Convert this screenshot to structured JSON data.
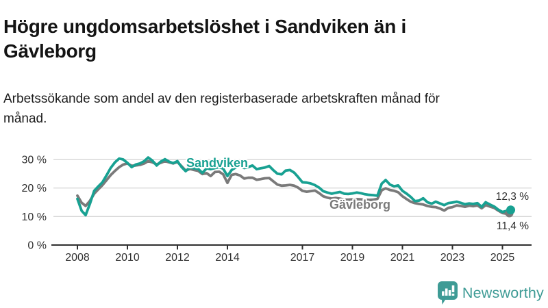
{
  "header": {
    "title": "Högre ungdomsarbetslöshet i Sandviken än i Gävleborg",
    "subtitle": "Arbetssökande som andel av den registerbaserade arbetskraften månad för månad."
  },
  "chart_data": {
    "type": "line",
    "title": "Högre ungdomsarbetslöshet i Sandviken än i Gävleborg",
    "xlabel": "",
    "ylabel": "Arbetssökande som andel av den registerbaserade arbetskraften (%)",
    "unit": "%",
    "ylim": [
      0,
      33
    ],
    "xlim": [
      2007.85,
      2025.6
    ],
    "grid": "horizontal",
    "legend_position": "inline-labels",
    "y_ticks": [
      {
        "value": 30,
        "label": "30 %"
      },
      {
        "value": 20,
        "label": "20 %"
      },
      {
        "value": 10,
        "label": "10 %"
      },
      {
        "value": 0,
        "label": "0 %"
      }
    ],
    "x_ticks": [
      {
        "value": 2008,
        "label": "2008"
      },
      {
        "value": 2010,
        "label": "2010"
      },
      {
        "value": 2012,
        "label": "2012"
      },
      {
        "value": 2014,
        "label": "2014"
      },
      {
        "value": 2017,
        "label": "2017"
      },
      {
        "value": 2019,
        "label": "2019"
      },
      {
        "value": 2021,
        "label": "2021"
      },
      {
        "value": 2023,
        "label": "2023"
      },
      {
        "value": 2025,
        "label": "2025"
      }
    ],
    "x": [
      2008,
      2008.17,
      2008.33,
      2008.5,
      2008.67,
      2008.83,
      2009,
      2009.17,
      2009.33,
      2009.5,
      2009.67,
      2009.83,
      2010,
      2010.17,
      2010.33,
      2010.5,
      2010.67,
      2010.83,
      2011,
      2011.17,
      2011.33,
      2011.5,
      2011.67,
      2011.83,
      2012,
      2012.17,
      2012.33,
      2012.5,
      2012.67,
      2012.83,
      2013,
      2013.17,
      2013.33,
      2013.5,
      2013.67,
      2013.83,
      2014,
      2014.17,
      2014.33,
      2014.5,
      2014.67,
      2014.83,
      2015,
      2015.17,
      2015.33,
      2015.5,
      2015.67,
      2015.83,
      2016,
      2016.17,
      2016.33,
      2016.5,
      2016.67,
      2016.83,
      2017,
      2017.17,
      2017.33,
      2017.5,
      2017.67,
      2017.83,
      2018,
      2018.17,
      2018.33,
      2018.5,
      2018.67,
      2018.83,
      2019,
      2019.17,
      2019.33,
      2019.5,
      2019.67,
      2019.83,
      2020,
      2020.17,
      2020.33,
      2020.5,
      2020.67,
      2020.83,
      2021,
      2021.17,
      2021.33,
      2021.5,
      2021.67,
      2021.83,
      2022,
      2022.17,
      2022.33,
      2022.5,
      2022.67,
      2022.83,
      2023,
      2023.17,
      2023.33,
      2023.5,
      2023.67,
      2023.83,
      2024,
      2024.17,
      2024.33,
      2024.5,
      2024.67,
      2024.83,
      2025,
      2025.17,
      2025.33
    ],
    "series": [
      {
        "name": "Sandviken",
        "color": "#18a192",
        "end_label": "12,3 %",
        "end_value": 12.3,
        "values": [
          16.2,
          12.0,
          10.5,
          14.5,
          19.0,
          20.5,
          22.0,
          24.5,
          27.0,
          29.0,
          30.3,
          30.0,
          28.8,
          27.3,
          28.2,
          28.6,
          29.4,
          30.7,
          29.6,
          27.9,
          29.2,
          30.1,
          29.2,
          28.7,
          29.4,
          27.3,
          25.9,
          27.2,
          26.9,
          26.7,
          25.3,
          26.9,
          26.6,
          27.0,
          27.3,
          26.8,
          24.2,
          26.3,
          27.2,
          27.8,
          27.0,
          27.3,
          27.9,
          26.6,
          26.9,
          27.2,
          27.7,
          26.3,
          25.0,
          24.8,
          26.1,
          26.3,
          25.4,
          23.8,
          22.0,
          21.9,
          21.6,
          21.0,
          20.1,
          18.9,
          18.4,
          18.0,
          18.3,
          18.6,
          18.0,
          17.9,
          18.1,
          18.4,
          18.2,
          17.8,
          17.6,
          17.5,
          17.3,
          21.5,
          22.8,
          21.2,
          20.6,
          20.9,
          19.0,
          18.0,
          16.9,
          15.4,
          15.6,
          16.4,
          15.0,
          14.5,
          15.2,
          14.6,
          14.0,
          14.7,
          14.9,
          15.2,
          14.8,
          14.3,
          14.6,
          14.4,
          14.7,
          13.4,
          15.0,
          14.2,
          13.5,
          12.4,
          11.6,
          12.0,
          12.3
        ]
      },
      {
        "name": "Gävleborg",
        "color": "#7a7a7a",
        "end_label": "11,4 %",
        "end_value": 11.4,
        "values": [
          17.3,
          14.8,
          13.7,
          15.5,
          18.0,
          19.5,
          21.0,
          22.8,
          24.5,
          26.0,
          27.3,
          28.2,
          28.6,
          27.8,
          27.9,
          28.1,
          28.6,
          29.4,
          29.0,
          28.3,
          28.8,
          29.4,
          29.0,
          28.6,
          29.1,
          27.6,
          26.1,
          26.7,
          26.3,
          26.0,
          24.9,
          25.2,
          24.2,
          25.6,
          25.7,
          24.8,
          21.8,
          24.6,
          24.9,
          24.4,
          23.3,
          23.6,
          23.6,
          22.9,
          23.1,
          23.4,
          23.5,
          22.4,
          21.2,
          20.8,
          20.9,
          21.1,
          20.8,
          20.1,
          19.0,
          18.7,
          18.9,
          19.1,
          18.2,
          17.1,
          16.6,
          16.3,
          16.5,
          16.3,
          15.9,
          15.9,
          16.0,
          16.1,
          16.0,
          15.9,
          15.8,
          15.9,
          16.2,
          19.2,
          19.9,
          19.3,
          19.0,
          18.5,
          17.1,
          16.1,
          15.2,
          14.7,
          14.4,
          14.2,
          13.7,
          13.4,
          13.3,
          12.8,
          12.1,
          13.0,
          13.3,
          13.9,
          13.7,
          13.4,
          13.8,
          13.6,
          13.9,
          12.9,
          14.0,
          13.5,
          13.0,
          12.1,
          11.2,
          11.0,
          11.4
        ]
      }
    ]
  },
  "branding": {
    "logo_text": "Newsworthy",
    "logo_color": "#3e9b95"
  },
  "colors": {
    "sandviken": "#18a192",
    "gavleborg": "#7a7a7a",
    "gridline": "#d8d8d8",
    "axis": "#2e2e2e"
  }
}
